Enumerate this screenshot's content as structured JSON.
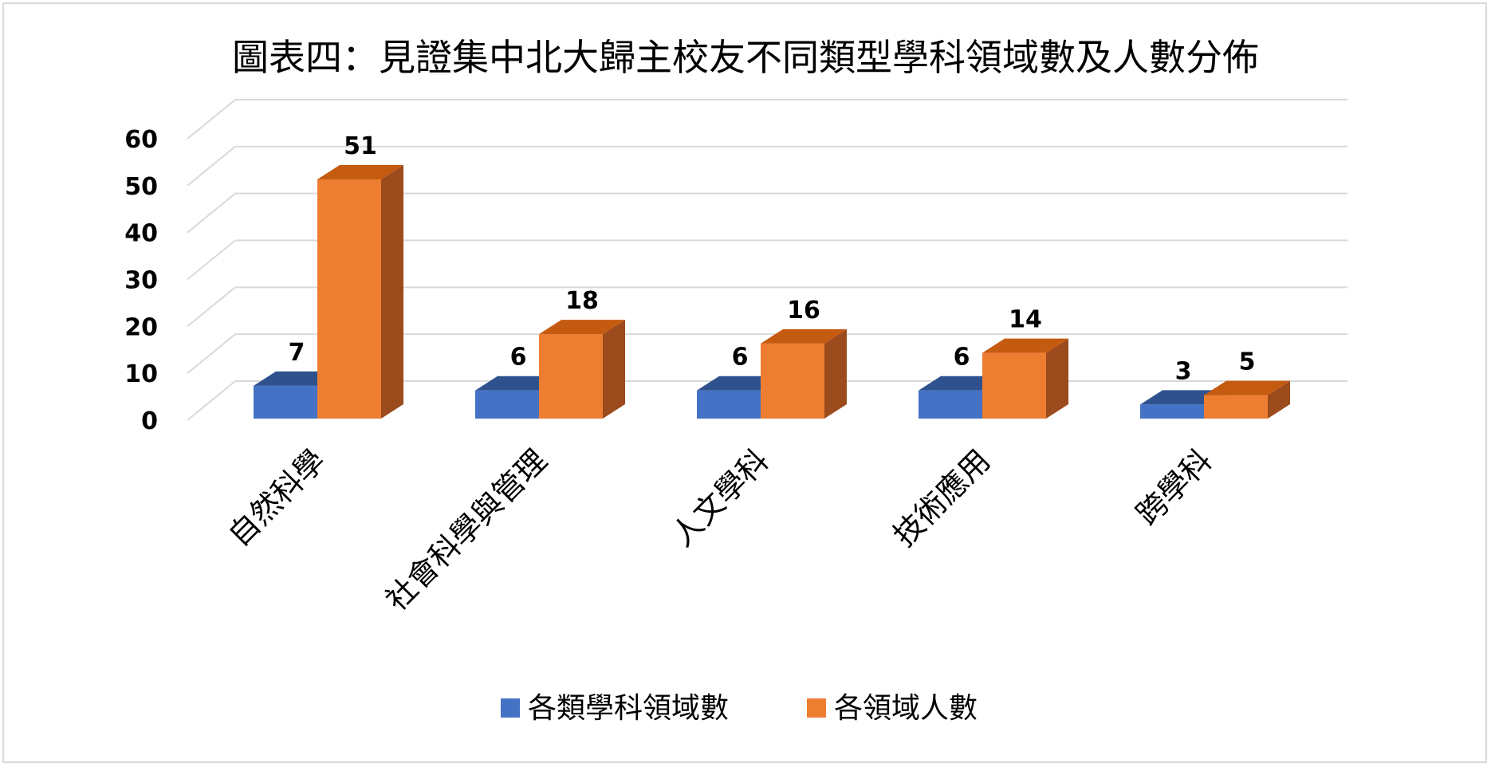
{
  "chart_data": {
    "type": "bar",
    "title": "圖表四：見證集中北大歸主校友不同類型學科領域數及人數分佈",
    "categories": [
      "自然科學",
      "社會科學與管理",
      "人文學科",
      "技術應用",
      "跨學科"
    ],
    "series": [
      {
        "name": "各類學科領域數",
        "values": [
          7,
          6,
          6,
          6,
          3
        ],
        "color": "#4472c4",
        "top": "#2f528f",
        "side": "#2f528f"
      },
      {
        "name": "各領域人數",
        "values": [
          51,
          18,
          16,
          14,
          5
        ],
        "color": "#ed7d31",
        "top": "#c55a11",
        "side": "#9c4b1c"
      }
    ],
    "ylim": [
      0,
      60
    ],
    "yticks": [
      "0",
      "10",
      "20",
      "30",
      "40",
      "50",
      "60"
    ],
    "ytick_values": [
      0,
      10,
      20,
      30,
      40,
      50,
      60
    ],
    "grid": true,
    "legend_position": "bottom",
    "three_d": true
  }
}
